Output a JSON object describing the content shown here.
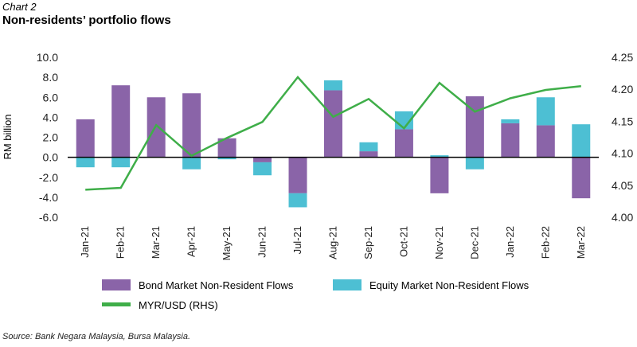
{
  "header": {
    "chart_number": "Chart 2",
    "title": "Non-residents’ portfolio flows"
  },
  "footer": {
    "source": "Source: Bank Negara Malaysia, Bursa Malaysia."
  },
  "colors": {
    "bond": "#8a64a8",
    "equity": "#4dbfd3",
    "line": "#3fae49",
    "zero_line": "#000000",
    "text": "#222222"
  },
  "chart_data": {
    "type": "bar",
    "stacked": true,
    "categories": [
      "Jan-21",
      "Feb-21",
      "Mar-21",
      "Apr-21",
      "May-21",
      "Jun-21",
      "Jul-21",
      "Aug-21",
      "Sep-21",
      "Oct-21",
      "Nov-21",
      "Dec-21",
      "Jan-22",
      "Feb-22",
      "Mar-22"
    ],
    "ylabel": "RM billion",
    "ylim": [
      -6,
      10
    ],
    "yticks": [
      "10.0",
      "8.0",
      "6.0",
      "4.0",
      "2.0",
      "0.0",
      "-2.0",
      "-4.0",
      "-6.0"
    ],
    "y2lim": [
      4.0,
      4.25
    ],
    "y2ticks": [
      "4.25",
      "4.20",
      "4.15",
      "4.10",
      "4.05",
      "4.00"
    ],
    "series": [
      {
        "name": "Bond Market Non-Resident Flows",
        "type": "bar",
        "axis": "left",
        "values": [
          3.8,
          7.2,
          6.0,
          6.4,
          1.9,
          -0.5,
          -3.6,
          6.7,
          0.6,
          2.8,
          -3.6,
          6.1,
          3.4,
          3.2,
          -4.1
        ]
      },
      {
        "name": "Equity Market Non-Resident Flows",
        "type": "bar",
        "axis": "left",
        "values": [
          -1.0,
          -1.0,
          0.0,
          -1.2,
          -0.2,
          -1.3,
          -1.4,
          1.0,
          0.9,
          1.8,
          0.2,
          -1.2,
          0.4,
          2.8,
          3.3
        ]
      },
      {
        "name": "MYR/USD (RHS)",
        "type": "line",
        "axis": "right",
        "values": [
          4.043,
          4.046,
          4.144,
          4.096,
          4.124,
          4.149,
          4.219,
          4.157,
          4.185,
          4.139,
          4.21,
          4.165,
          4.186,
          4.199,
          4.205
        ]
      }
    ]
  }
}
